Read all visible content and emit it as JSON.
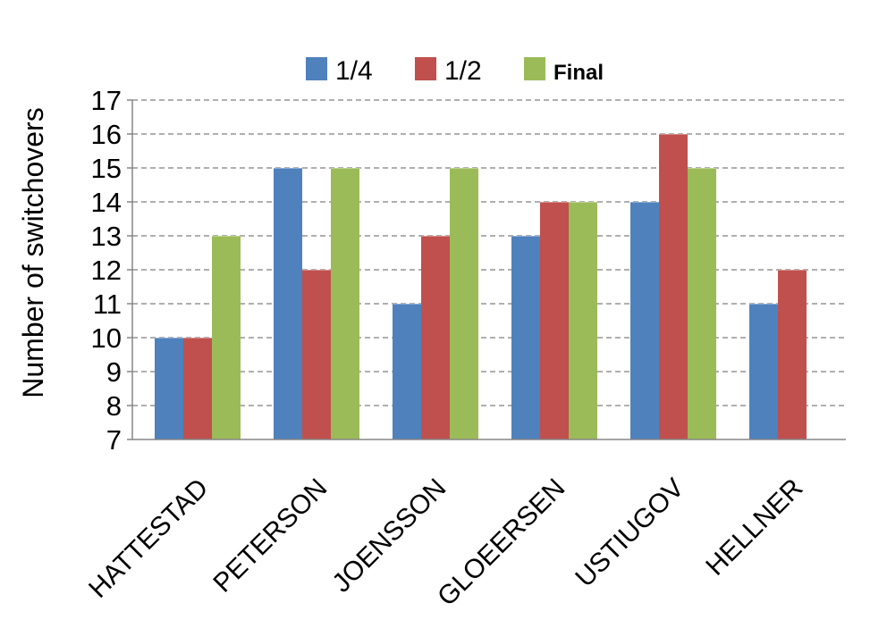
{
  "chart_data": {
    "type": "bar",
    "ylabel": "Number of switchovers",
    "ylim": [
      7,
      17
    ],
    "yticks": [
      7,
      8,
      9,
      10,
      11,
      12,
      13,
      14,
      15,
      16,
      17
    ],
    "grid": true,
    "legend_position": "top",
    "categories": [
      "HATTESTAD",
      "PETERSON",
      "JOENSSON",
      "GLOEERSEN",
      "USTIUGOV",
      "HELLNER"
    ],
    "series": [
      {
        "name": "1/4",
        "color": "#4F81BD",
        "values": [
          10,
          15,
          11,
          13,
          14,
          11
        ]
      },
      {
        "name": "1/2",
        "color": "#C0504D",
        "values": [
          10,
          12,
          13,
          14,
          16,
          12
        ]
      },
      {
        "name": "Final",
        "color": "#9BBB59",
        "values": [
          13,
          15,
          15,
          14,
          15,
          null
        ]
      }
    ]
  }
}
